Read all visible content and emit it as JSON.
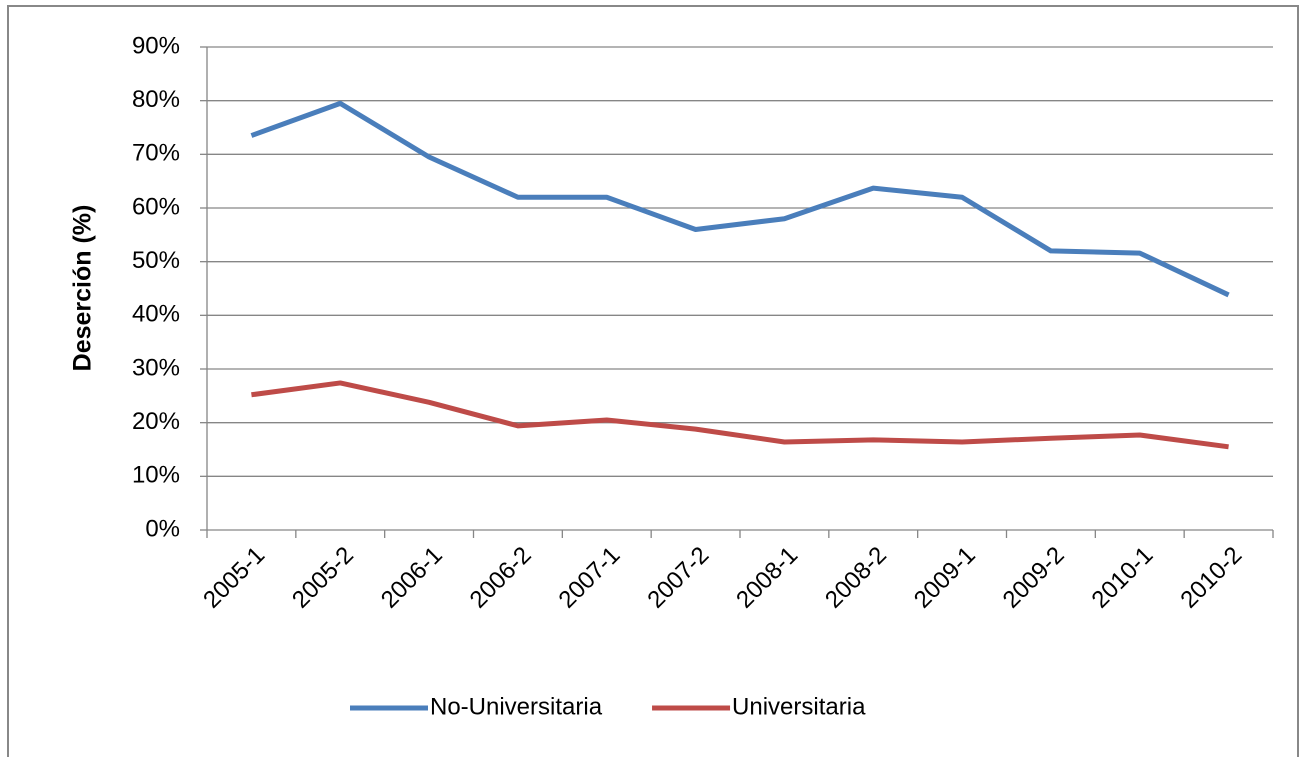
{
  "chart_data": {
    "type": "line",
    "y_label": "Deserción (%)",
    "categories": [
      "2005-1",
      "2005-2",
      "2006-1",
      "2006-2",
      "2007-1",
      "2007-2",
      "2008-1",
      "2008-2",
      "2009-1",
      "2009-2",
      "2010-1",
      "2010-2"
    ],
    "series": [
      {
        "name": "No-Universitaria",
        "color": "#4a7ebb",
        "values": [
          73.5,
          79.5,
          69.5,
          62,
          62,
          56,
          58,
          63.7,
          62,
          52,
          51.6,
          43.8
        ]
      },
      {
        "name": "Universitaria",
        "color": "#be4b48",
        "values": [
          25.2,
          27.4,
          23.8,
          19.4,
          20.5,
          18.8,
          16.4,
          16.8,
          16.4,
          17.1,
          17.7,
          15.5
        ]
      }
    ],
    "ylim": [
      0,
      90
    ],
    "yticks": [
      {
        "value": 0,
        "label": "0%"
      },
      {
        "value": 10,
        "label": "10%"
      },
      {
        "value": 20,
        "label": "20%"
      },
      {
        "value": 30,
        "label": "30%"
      },
      {
        "value": 40,
        "label": "40%"
      },
      {
        "value": 50,
        "label": "50%"
      },
      {
        "value": 60,
        "label": "60%"
      },
      {
        "value": 70,
        "label": "70%"
      },
      {
        "value": 80,
        "label": "80%"
      },
      {
        "value": 90,
        "label": "90%"
      }
    ],
    "grid": true,
    "legend": "bottom"
  }
}
